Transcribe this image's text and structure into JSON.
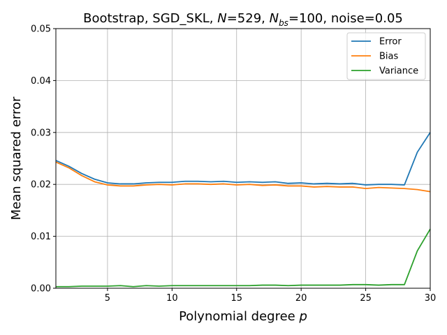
{
  "chart_data": {
    "type": "line",
    "title_parts": {
      "lead": "Bootstrap, SGD_SKL, ",
      "n_symbol": "N",
      "n_value": "=529, ",
      "nbs_symbol": "N",
      "nbs_sub": "bs",
      "nbs_value": "=100, noise=0.05"
    },
    "xlabel_text": "Polynomial degree ",
    "xlabel_symbol": "p",
    "ylabel": "Mean squared error",
    "xlim": [
      1,
      30
    ],
    "ylim": [
      0,
      0.05
    ],
    "xticks": [
      5,
      10,
      15,
      20,
      25,
      30
    ],
    "xtick_labels": [
      "5",
      "10",
      "15",
      "20",
      "25",
      "30"
    ],
    "yticks": [
      0,
      0.01,
      0.02,
      0.03,
      0.04,
      0.05
    ],
    "ytick_labels": [
      "0.00",
      "0.01",
      "0.02",
      "0.03",
      "0.04",
      "0.05"
    ],
    "grid": true,
    "legend_position": "top-right",
    "x": [
      1,
      2,
      3,
      4,
      5,
      6,
      7,
      8,
      9,
      10,
      11,
      12,
      13,
      14,
      15,
      16,
      17,
      18,
      19,
      20,
      21,
      22,
      23,
      24,
      25,
      26,
      27,
      28,
      29,
      30
    ],
    "series": [
      {
        "name": "Error",
        "color": "#1f77b4",
        "values": [
          0.0246,
          0.0235,
          0.0221,
          0.021,
          0.0203,
          0.0201,
          0.0201,
          0.0203,
          0.0204,
          0.0204,
          0.0206,
          0.0206,
          0.0205,
          0.0206,
          0.0204,
          0.0205,
          0.0204,
          0.0205,
          0.0202,
          0.0203,
          0.0201,
          0.0202,
          0.0201,
          0.0202,
          0.0199,
          0.02,
          0.02,
          0.0199,
          0.0262,
          0.03
        ]
      },
      {
        "name": "Bias",
        "color": "#ff7f0e",
        "values": [
          0.0243,
          0.0232,
          0.0217,
          0.0205,
          0.0199,
          0.0197,
          0.0197,
          0.0199,
          0.02,
          0.0199,
          0.0201,
          0.0201,
          0.02,
          0.0201,
          0.0199,
          0.02,
          0.0198,
          0.0199,
          0.0197,
          0.0197,
          0.0195,
          0.0196,
          0.0195,
          0.0195,
          0.0192,
          0.0194,
          0.0193,
          0.0192,
          0.019,
          0.0186
        ]
      },
      {
        "name": "Variance",
        "color": "#2ca02c",
        "values": [
          0.0003,
          0.0003,
          0.0004,
          0.0004,
          0.0004,
          0.0005,
          0.0003,
          0.0005,
          0.0004,
          0.0005,
          0.0005,
          0.0005,
          0.0005,
          0.0005,
          0.0005,
          0.0005,
          0.0006,
          0.0006,
          0.0005,
          0.0006,
          0.0006,
          0.0006,
          0.0006,
          0.0007,
          0.0007,
          0.0006,
          0.0007,
          0.0007,
          0.0072,
          0.0114
        ]
      }
    ]
  }
}
